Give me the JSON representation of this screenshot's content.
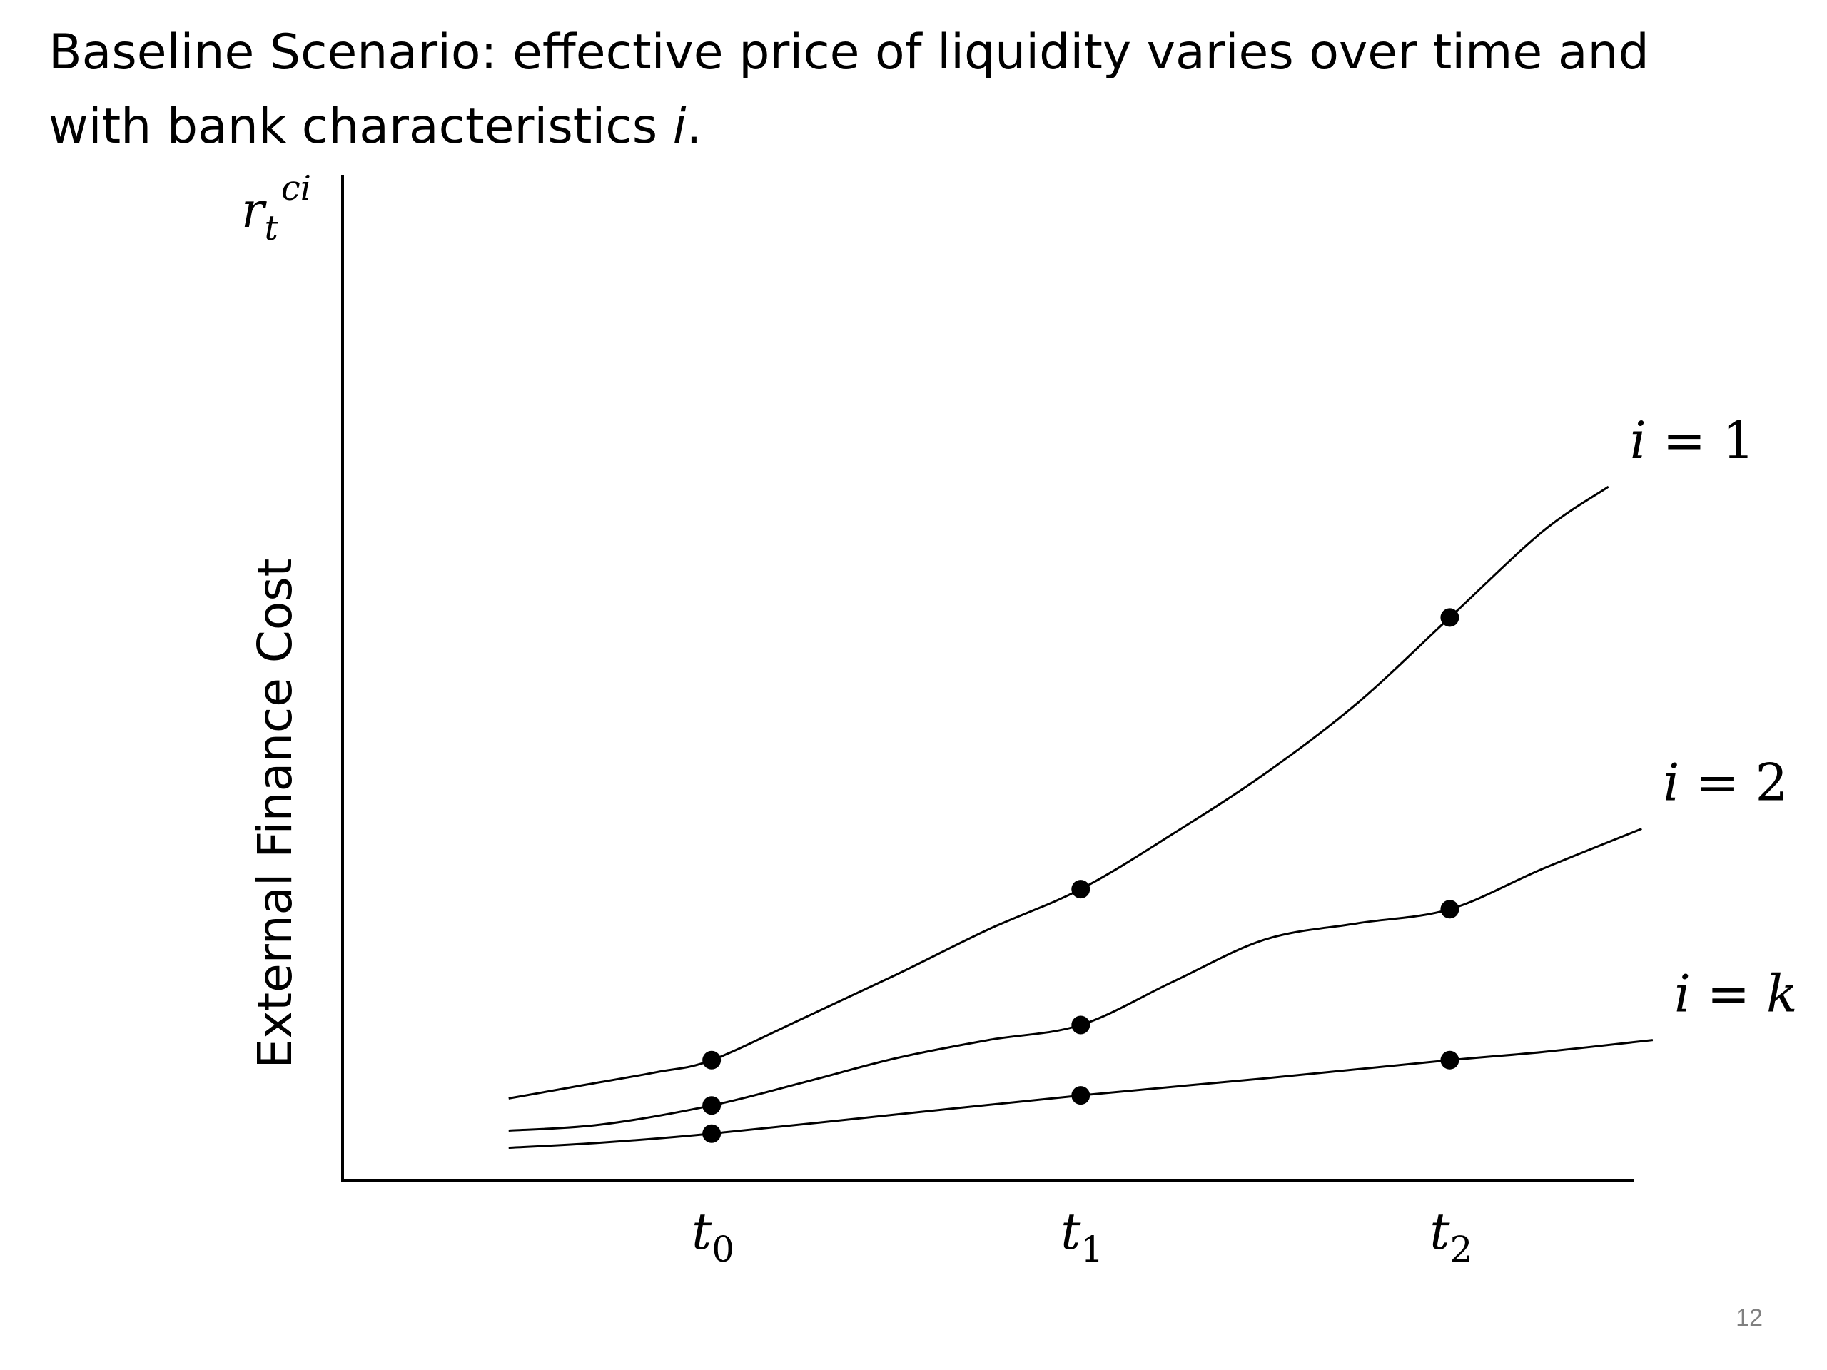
{
  "title": {
    "line1": "Baseline Scenario:  effective price of liquidity varies over time and",
    "line2_prefix": "with bank characteristics ",
    "line2_var": "i",
    "line2_suffix": "."
  },
  "page_number": "12",
  "colors": {
    "text": "#000000",
    "line": "#000000",
    "page_number": "#808080"
  },
  "chart_data": {
    "type": "line",
    "title": "",
    "ylabel": "External Finance Cost",
    "ylabel_symbol": {
      "base": "r",
      "sub": "t",
      "sup": "ci"
    },
    "xlabel": "",
    "x_ticks": [
      {
        "base": "t",
        "sub": "0"
      },
      {
        "base": "t",
        "sub": "1"
      },
      {
        "base": "t",
        "sub": "2"
      }
    ],
    "x": [
      0,
      1,
      2
    ],
    "xlim": [
      -1,
      2.5
    ],
    "ylim": [
      0,
      10
    ],
    "grid": false,
    "legend": "inline labels at line ends",
    "series": [
      {
        "name": "i = 1",
        "label_var": "i",
        "label_op": " = ",
        "label_val": "1",
        "marker_values": [
          1.2,
          2.9,
          5.6
        ],
        "curve": [
          [
            -0.55,
            0.82
          ],
          [
            -0.35,
            0.95
          ],
          [
            -0.15,
            1.08
          ],
          [
            0,
            1.2
          ],
          [
            0.25,
            1.62
          ],
          [
            0.5,
            2.05
          ],
          [
            0.75,
            2.5
          ],
          [
            1,
            2.9
          ],
          [
            1.25,
            3.45
          ],
          [
            1.5,
            4.05
          ],
          [
            1.75,
            4.75
          ],
          [
            2,
            5.6
          ],
          [
            2.25,
            6.45
          ],
          [
            2.43,
            6.9
          ]
        ]
      },
      {
        "name": "i = 2",
        "label_var": "i",
        "label_op": " = ",
        "label_val": "2",
        "marker_values": [
          0.75,
          1.55,
          2.7
        ],
        "curve": [
          [
            -0.55,
            0.5
          ],
          [
            -0.3,
            0.56
          ],
          [
            0,
            0.75
          ],
          [
            0.25,
            0.98
          ],
          [
            0.5,
            1.22
          ],
          [
            0.75,
            1.4
          ],
          [
            1,
            1.55
          ],
          [
            1.25,
            1.98
          ],
          [
            1.5,
            2.4
          ],
          [
            1.75,
            2.56
          ],
          [
            2,
            2.7
          ],
          [
            2.25,
            3.1
          ],
          [
            2.52,
            3.5
          ]
        ]
      },
      {
        "name": "i = k",
        "label_var": "i",
        "label_op": " = ",
        "label_val": "k",
        "marker_values": [
          0.47,
          0.85,
          1.2
        ],
        "curve": [
          [
            -0.55,
            0.33
          ],
          [
            -0.3,
            0.38
          ],
          [
            0,
            0.47
          ],
          [
            0.5,
            0.66
          ],
          [
            1,
            0.85
          ],
          [
            1.5,
            1.02
          ],
          [
            2,
            1.2
          ],
          [
            2.25,
            1.28
          ],
          [
            2.55,
            1.4
          ]
        ]
      }
    ]
  }
}
